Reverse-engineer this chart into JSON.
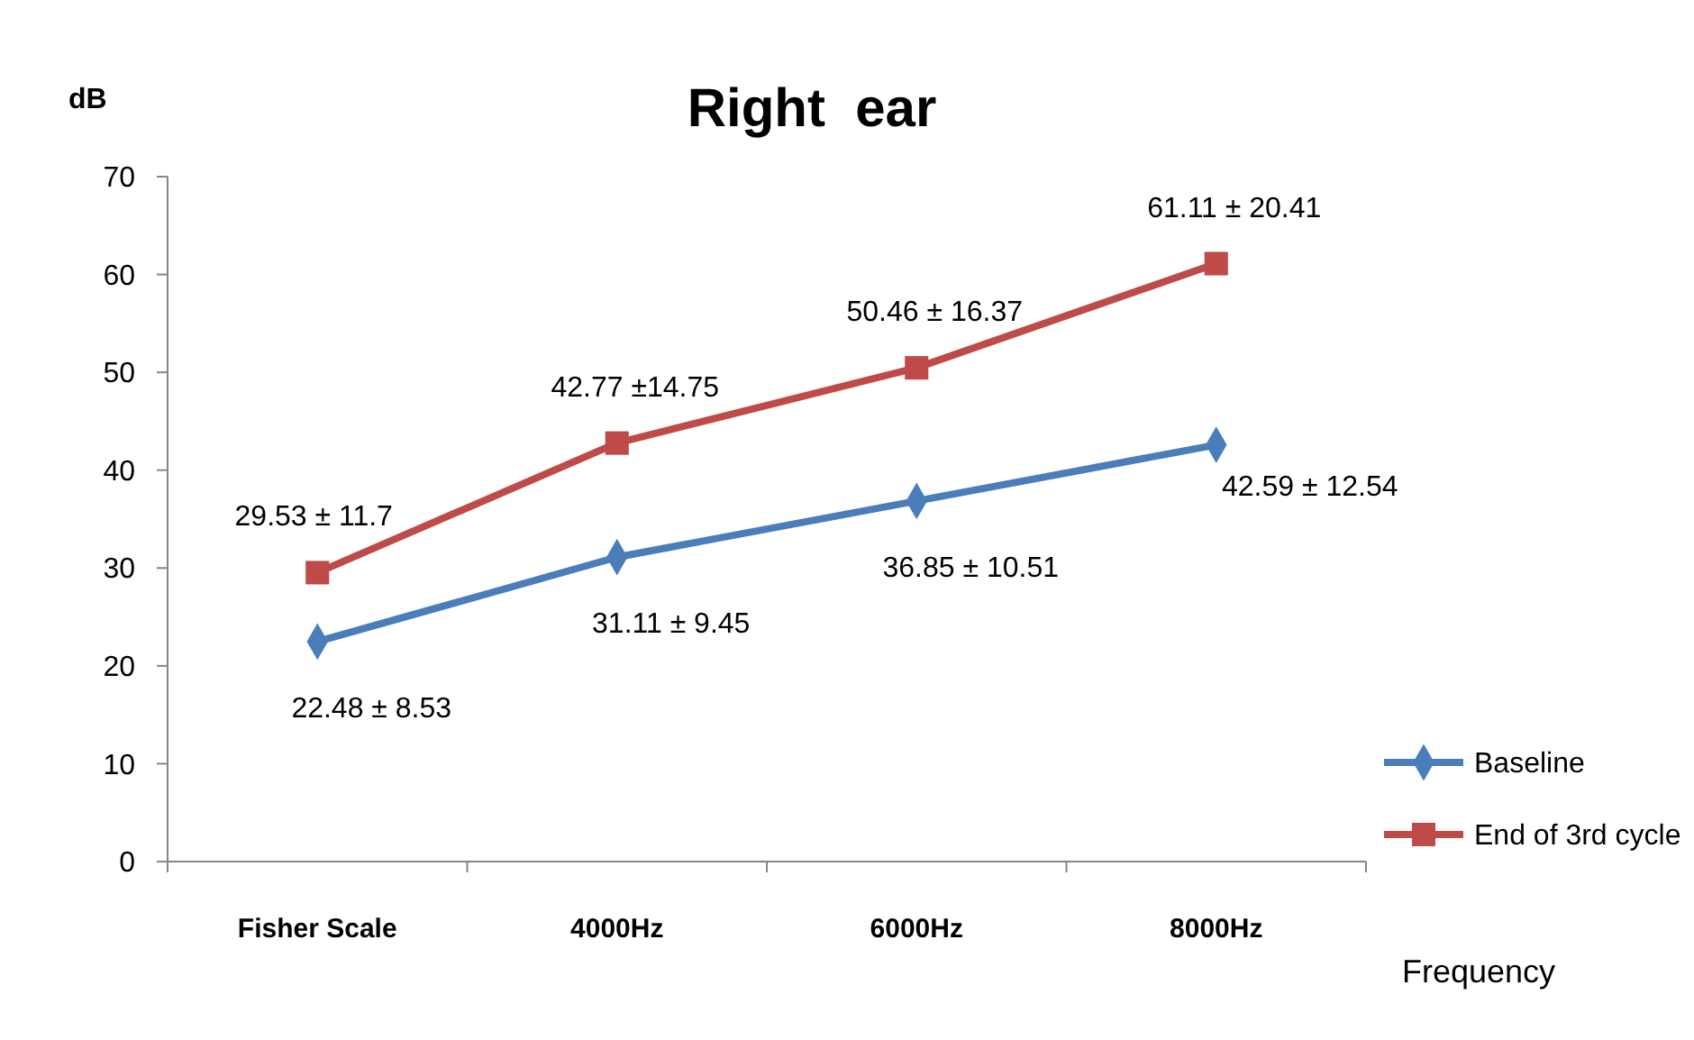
{
  "chart_data": {
    "type": "line",
    "title": "Right  ear",
    "ylabel": "dB",
    "xlabel": "Frequency",
    "categories": [
      "Fisher Scale",
      "4000Hz",
      "6000Hz",
      "8000Hz"
    ],
    "series": [
      {
        "name": "Baseline",
        "color": "#4a7ebb",
        "marker": "diamond",
        "values": [
          22.48,
          31.11,
          36.85,
          42.59
        ],
        "value_labels": [
          "22.48 ± 8.53",
          "31.11 ± 9.45",
          "36.85 ± 10.51",
          "42.59 ± 12.54"
        ]
      },
      {
        "name": "End of 3rd cycle",
        "color": "#be4b48",
        "marker": "square",
        "values": [
          29.53,
          42.77,
          50.46,
          61.11
        ],
        "value_labels": [
          "29.53 ± 11.7",
          "42.77 ±14.75",
          "50.46 ± 16.37",
          "61.11 ± 20.41"
        ]
      }
    ],
    "ylim": [
      0,
      70
    ],
    "yticks": [
      0,
      10,
      20,
      30,
      40,
      50,
      60,
      70
    ],
    "grid": false,
    "legend": "right",
    "line_style": "solid"
  }
}
